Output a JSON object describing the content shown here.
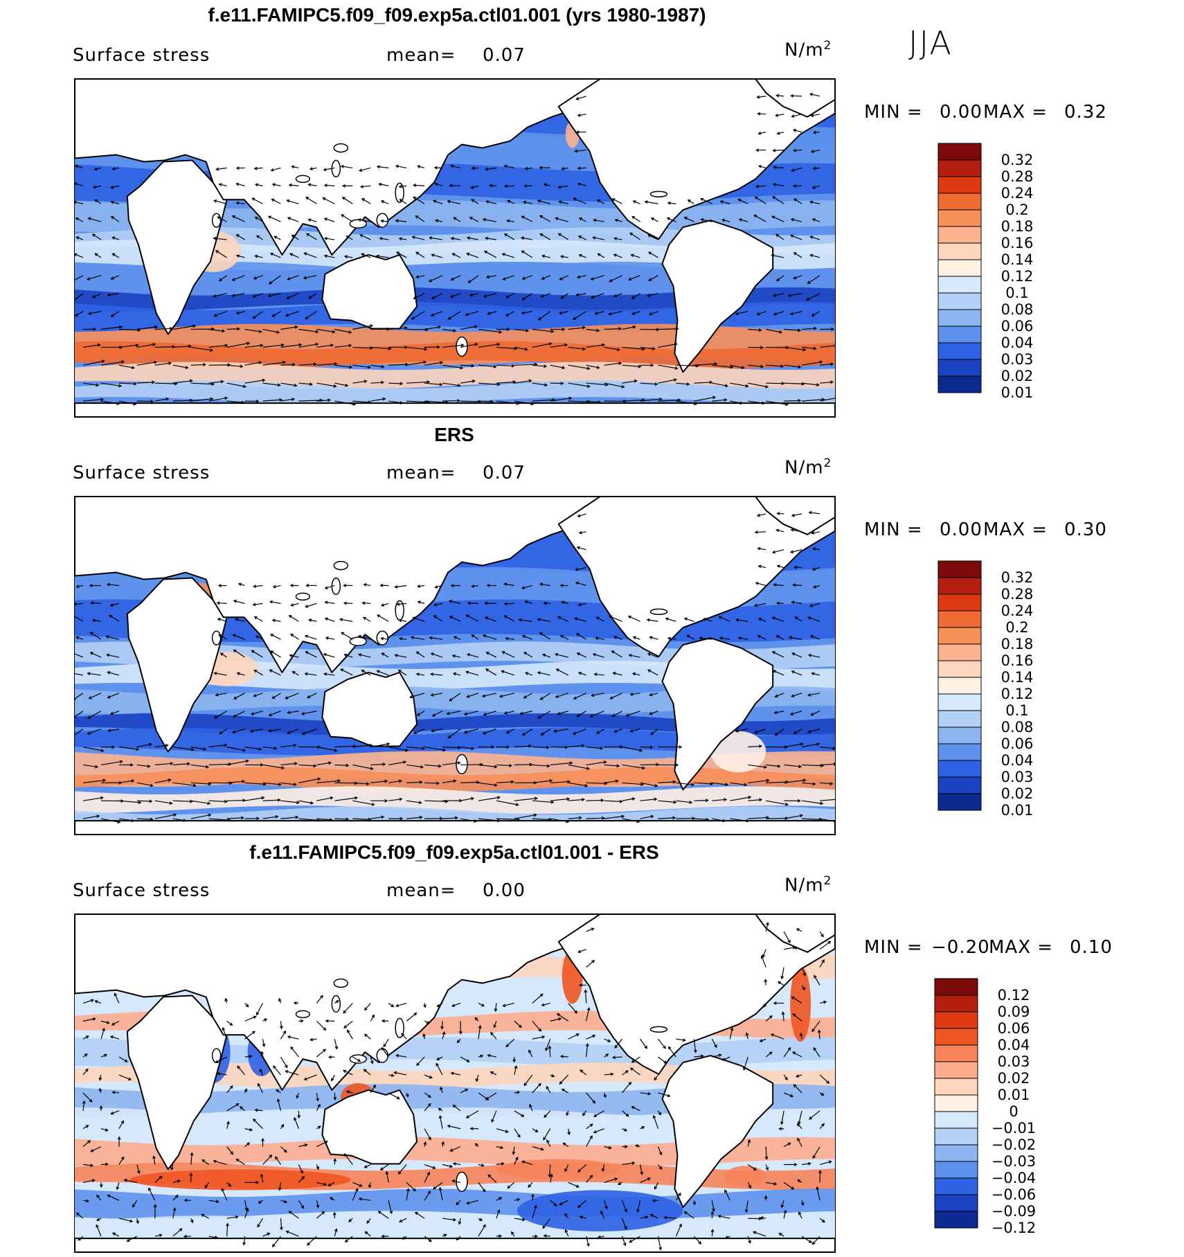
{
  "season": "JJA",
  "units_main": "N/m",
  "units_sup": "2",
  "panels": [
    {
      "title": "f.e11.FAMIPC5.f09_f09.exp5a.ctl01.001 (yrs 1980-1987)",
      "field": "Surface stress",
      "mean_label": "mean=",
      "mean_value": "0.07",
      "min_label": "MIN =",
      "min_value": "0.00",
      "max_label": "MAX =",
      "max_value": "0.32",
      "levels": [
        "0.32",
        "0.28",
        "0.24",
        "0.2",
        "0.18",
        "0.16",
        "0.14",
        "0.12",
        "0.1",
        "0.08",
        "0.06",
        "0.04",
        "0.03",
        "0.02",
        "0.01"
      ]
    },
    {
      "title": "ERS",
      "field": "Surface stress",
      "mean_label": "mean=",
      "mean_value": "0.07",
      "min_label": "MIN =",
      "min_value": "0.00",
      "max_label": "MAX =",
      "max_value": "0.30",
      "levels": [
        "0.32",
        "0.28",
        "0.24",
        "0.2",
        "0.18",
        "0.16",
        "0.14",
        "0.12",
        "0.1",
        "0.08",
        "0.06",
        "0.04",
        "0.03",
        "0.02",
        "0.01"
      ]
    },
    {
      "title": "f.e11.FAMIPC5.f09_f09.exp5a.ctl01.001 - ERS",
      "field": "Surface stress",
      "mean_label": "mean=",
      "mean_value": "0.00",
      "min_label": "MIN =",
      "min_value": "−0.20",
      "max_label": "MAX =",
      "max_value": "0.10",
      "levels": [
        "0.12",
        "0.09",
        "0.06",
        "0.04",
        "0.03",
        "0.02",
        "0.01",
        "0",
        "−0.01",
        "−0.02",
        "−0.03",
        "−0.04",
        "−0.06",
        "−0.09",
        "−0.12"
      ]
    }
  ],
  "colors": {
    "seq": [
      "#7d0a0a",
      "#b51f10",
      "#dd3a12",
      "#f06a33",
      "#f78f5a",
      "#fcb38f",
      "#fdd5bd",
      "#fff0e4",
      "#d6e8fb",
      "#b3d0f6",
      "#8db5f0",
      "#5e92ec",
      "#2f62e3",
      "#1a42c2",
      "#0c2a8f"
    ],
    "div": [
      "#7d0a0a",
      "#b51f10",
      "#dd3a12",
      "#f05524",
      "#f7845a",
      "#fcad8f",
      "#fdd5bd",
      "#fff0e4",
      "#d6e8fb",
      "#b3d0f6",
      "#8db5f0",
      "#5e92ec",
      "#2f62e3",
      "#1a42c2",
      "#0c2a8f"
    ]
  }
}
